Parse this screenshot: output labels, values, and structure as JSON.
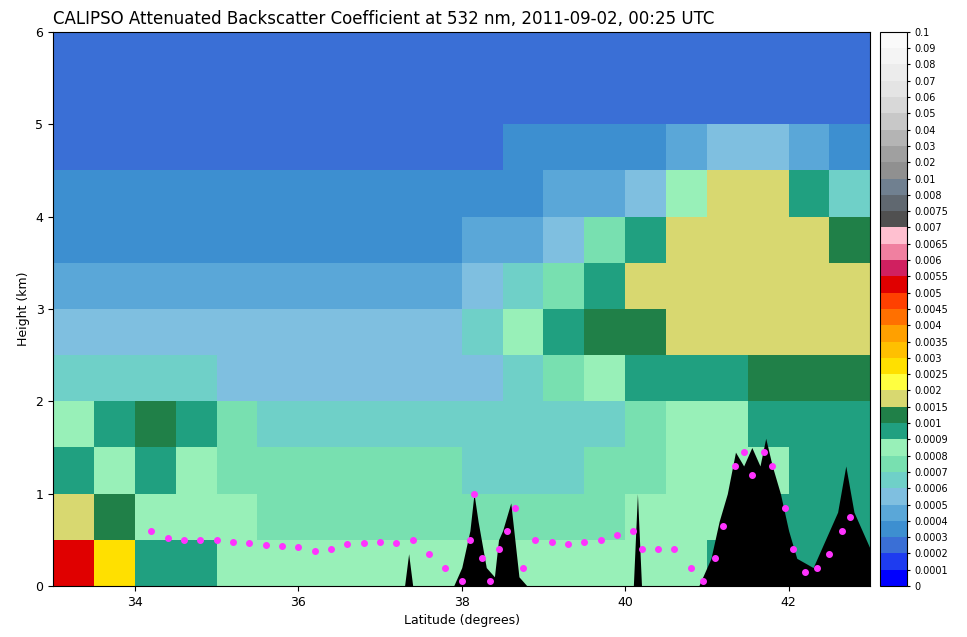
{
  "chart_data": {
    "type": "heatmap",
    "title": "CALIPSO Attenuated Backscatter Coefficient at 532 nm, 2011-09-02, 00:25 UTC",
    "x_label": "Latitude (degrees)",
    "y_label": "Height (km)",
    "xlim": [
      33,
      43
    ],
    "ylim": [
      0,
      6
    ],
    "xticks": [
      34,
      36,
      38,
      40,
      42
    ],
    "yticks": [
      0,
      1,
      2,
      3,
      4,
      5,
      6
    ],
    "x_edges": [
      33,
      33.5,
      34,
      34.5,
      35,
      35.5,
      36,
      36.5,
      37,
      37.5,
      38,
      38.5,
      39,
      39.5,
      40,
      40.5,
      41,
      41.5,
      42,
      42.5,
      43
    ],
    "y_edges": [
      0,
      0.5,
      1,
      1.5,
      2,
      2.5,
      3,
      3.5,
      4,
      4.5,
      5,
      5.5,
      6
    ],
    "cells": [
      [
        0.005,
        0.0025,
        0.0009,
        0.0009,
        0.0008,
        0.0008,
        0.0008,
        0.0008,
        0.0008,
        0.0008,
        0.0008,
        0.0008,
        0.0008,
        0.0008,
        0.0008,
        0.0008,
        0.0009,
        0.0009,
        0.0009,
        0.0009
      ],
      [
        0.0015,
        0.001,
        0.0008,
        0.0008,
        0.0008,
        0.0007,
        0.0007,
        0.0007,
        0.0007,
        0.0007,
        0.0007,
        0.0007,
        0.0007,
        0.0007,
        0.0008,
        0.0008,
        0.0008,
        0.0009,
        0.0009,
        0.0009
      ],
      [
        0.0009,
        0.0008,
        0.0009,
        0.0008,
        0.0007,
        0.0007,
        0.0007,
        0.0007,
        0.0007,
        0.0007,
        0.0006,
        0.0006,
        0.0006,
        0.0007,
        0.0007,
        0.0008,
        0.0008,
        0.0008,
        0.0009,
        0.0009
      ],
      [
        0.0008,
        0.0009,
        0.001,
        0.0009,
        0.0007,
        0.0006,
        0.0006,
        0.0006,
        0.0006,
        0.0006,
        0.0006,
        0.0006,
        0.0006,
        0.0006,
        0.0007,
        0.0008,
        0.0008,
        0.0009,
        0.0009,
        0.0009
      ],
      [
        0.0006,
        0.0006,
        0.0006,
        0.0006,
        0.0005,
        0.0005,
        0.0005,
        0.0005,
        0.0005,
        0.0005,
        0.0005,
        0.0006,
        0.0007,
        0.0008,
        0.0009,
        0.0009,
        0.0009,
        0.001,
        0.001,
        0.001
      ],
      [
        0.0005,
        0.0005,
        0.0005,
        0.0005,
        0.0005,
        0.0005,
        0.0005,
        0.0005,
        0.0005,
        0.0005,
        0.0006,
        0.0008,
        0.0009,
        0.001,
        0.001,
        0.0015,
        0.0015,
        0.0015,
        0.0015,
        0.0015
      ],
      [
        0.0004,
        0.0004,
        0.0004,
        0.0004,
        0.0004,
        0.0004,
        0.0004,
        0.0004,
        0.0004,
        0.0004,
        0.0005,
        0.0006,
        0.0007,
        0.0009,
        0.0015,
        0.0015,
        0.0015,
        0.0015,
        0.0015,
        0.0015
      ],
      [
        0.0003,
        0.0003,
        0.0003,
        0.0003,
        0.0003,
        0.0003,
        0.0003,
        0.0003,
        0.0003,
        0.0003,
        0.0004,
        0.0004,
        0.0005,
        0.0007,
        0.0009,
        0.0015,
        0.0015,
        0.0015,
        0.0015,
        0.001
      ],
      [
        0.0003,
        0.0003,
        0.0003,
        0.0003,
        0.0003,
        0.0003,
        0.0003,
        0.0003,
        0.0003,
        0.0003,
        0.0003,
        0.0003,
        0.0004,
        0.0004,
        0.0005,
        0.0008,
        0.0015,
        0.0015,
        0.0009,
        0.0006
      ],
      [
        0.0002,
        0.0002,
        0.0002,
        0.0002,
        0.0002,
        0.0002,
        0.0002,
        0.0002,
        0.0002,
        0.0002,
        0.0002,
        0.0003,
        0.0003,
        0.0003,
        0.0003,
        0.0004,
        0.0005,
        0.0005,
        0.0004,
        0.0003
      ],
      [
        0.0002,
        0.0002,
        0.0002,
        0.0002,
        0.0002,
        0.0002,
        0.0002,
        0.0002,
        0.0002,
        0.0002,
        0.0002,
        0.0002,
        0.0002,
        0.0002,
        0.0002,
        0.0002,
        0.0002,
        0.0002,
        0.0002,
        0.0002
      ],
      [
        0.0002,
        0.0002,
        0.0002,
        0.0002,
        0.0002,
        0.0002,
        0.0002,
        0.0002,
        0.0002,
        0.0002,
        0.0002,
        0.0002,
        0.0002,
        0.0002,
        0.0002,
        0.0002,
        0.0002,
        0.0002,
        0.0002,
        0.0002
      ]
    ],
    "surface": {
      "color": "#000000",
      "x": [
        33,
        37.3,
        37.35,
        37.4,
        37.45,
        37.9,
        38.0,
        38.1,
        38.15,
        38.2,
        38.3,
        38.4,
        38.45,
        38.5,
        38.6,
        38.65,
        38.7,
        38.8,
        40.1,
        40.15,
        40.2,
        40.9,
        41.05,
        41.15,
        41.25,
        41.35,
        41.45,
        41.55,
        41.65,
        41.72,
        41.8,
        41.9,
        42.0,
        42.1,
        42.3,
        42.5,
        42.6,
        42.7,
        42.8,
        42.9,
        43
      ],
      "y": [
        0,
        0,
        0.35,
        0,
        0,
        0,
        0.2,
        0.6,
        1.0,
        0.7,
        0.2,
        0.1,
        0.5,
        0.6,
        0.9,
        0.5,
        0.1,
        0,
        0,
        1.0,
        0,
        0,
        0.3,
        0.7,
        1.0,
        1.45,
        1.3,
        1.5,
        1.3,
        1.6,
        1.3,
        1.0,
        0.6,
        0.3,
        0.2,
        0.6,
        0.8,
        1.3,
        0.8,
        0.6,
        0.4
      ]
    },
    "boundary": {
      "color": "#ff33ff",
      "marker": "o",
      "x": [
        34.2,
        34.4,
        34.6,
        34.8,
        35.0,
        35.2,
        35.4,
        35.6,
        35.8,
        36.0,
        36.2,
        36.4,
        36.6,
        36.8,
        37.0,
        37.2,
        37.4,
        37.6,
        37.8,
        38.0,
        38.1,
        38.15,
        38.25,
        38.35,
        38.45,
        38.55,
        38.65,
        38.75,
        38.9,
        39.1,
        39.3,
        39.5,
        39.7,
        39.9,
        40.1,
        40.2,
        40.4,
        40.6,
        40.8,
        40.95,
        41.1,
        41.2,
        41.35,
        41.45,
        41.55,
        41.7,
        41.8,
        41.95,
        42.05,
        42.2,
        42.35,
        42.5,
        42.65,
        42.75
      ],
      "y": [
        0.6,
        0.52,
        0.5,
        0.5,
        0.5,
        0.48,
        0.47,
        0.44,
        0.43,
        0.42,
        0.38,
        0.4,
        0.45,
        0.47,
        0.48,
        0.47,
        0.5,
        0.35,
        0.2,
        0.05,
        0.5,
        1.0,
        0.3,
        0.05,
        0.4,
        0.6,
        0.85,
        0.2,
        0.5,
        0.48,
        0.45,
        0.48,
        0.5,
        0.55,
        0.6,
        0.4,
        0.4,
        0.4,
        0.2,
        0.05,
        0.3,
        0.65,
        1.3,
        1.45,
        1.2,
        1.45,
        1.3,
        0.85,
        0.4,
        0.15,
        0.2,
        0.35,
        0.6,
        0.75
      ]
    },
    "colorbar": {
      "range": [
        0,
        0.1
      ],
      "ticks": [
        0,
        0.0001,
        0.0002,
        0.0003,
        0.0004,
        0.0005,
        0.0006,
        0.0007,
        0.0008,
        0.0009,
        0.001,
        0.0015,
        0.002,
        0.0025,
        0.003,
        0.0035,
        0.004,
        0.0045,
        0.005,
        0.0055,
        0.006,
        0.0065,
        0.007,
        0.0075,
        0.008,
        0.01,
        0.02,
        0.03,
        0.04,
        0.05,
        0.06,
        0.07,
        0.08,
        0.09,
        0.1
      ],
      "colors": [
        "#0000ff",
        "#1e3cf0",
        "#3a6fd6",
        "#3d8fd0",
        "#5aa7d8",
        "#7fbfe0",
        "#6fd0c8",
        "#78e0b0",
        "#98f0b8",
        "#20a080",
        "#208048",
        "#d8d870",
        "#ffff40",
        "#ffe000",
        "#ffc000",
        "#ffa000",
        "#ff7000",
        "#ff4000",
        "#e00000",
        "#d02060",
        "#f080a0",
        "#ffc0d0",
        "#505050",
        "#606870",
        "#708090",
        "#909090",
        "#a0a0a0",
        "#b4b4b4",
        "#c8c8c8",
        "#d8d8d8",
        "#e4e4e4",
        "#ececec",
        "#f4f4f4",
        "#fafafa"
      ]
    }
  }
}
